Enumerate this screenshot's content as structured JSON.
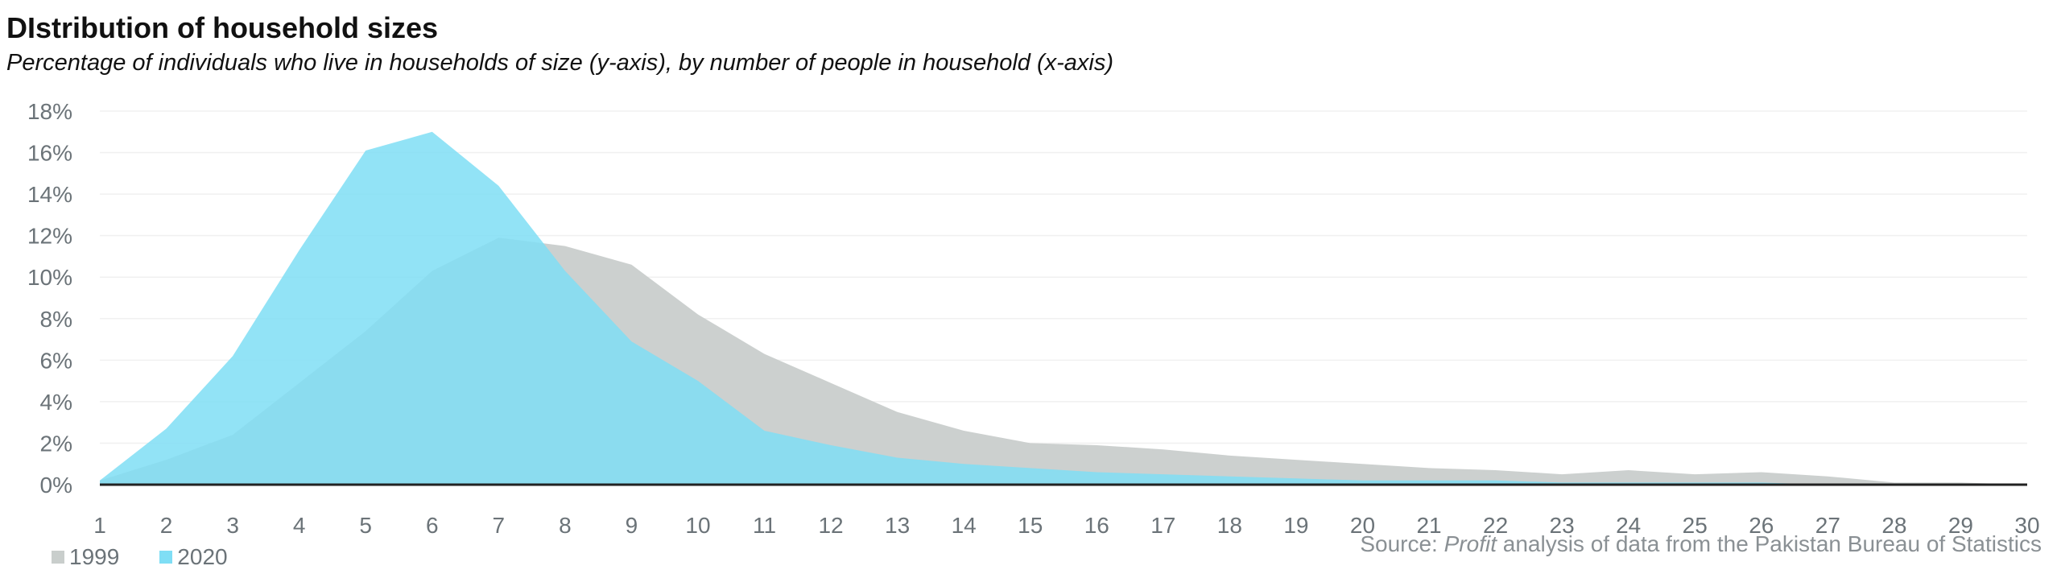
{
  "title": "DIstribution of household sizes",
  "subtitle": "Percentage of individuals who live in households of size (y-axis), by number of people in household (x-axis)",
  "source": {
    "prefix": "Source: ",
    "italic": "Profit",
    "suffix": " analysis of data from the Pakistan Bureau of Statistics"
  },
  "colors": {
    "series_1999": "#c9cecc",
    "series_2020": "#7fdef5",
    "axis": "#222222",
    "grid": "#f0f0f0"
  },
  "chart_data": {
    "type": "area",
    "title": "DIstribution of household sizes",
    "subtitle": "Percentage of individuals who live in households of size (y-axis), by number of people in household (x-axis)",
    "x": [
      1,
      2,
      3,
      4,
      5,
      6,
      7,
      8,
      9,
      10,
      11,
      12,
      13,
      14,
      15,
      16,
      17,
      18,
      19,
      20,
      21,
      22,
      23,
      24,
      25,
      26,
      27,
      28,
      29,
      30
    ],
    "x_ticks": [
      "1",
      "2",
      "3",
      "4",
      "5",
      "6",
      "7",
      "8",
      "9",
      "10",
      "11",
      "12",
      "13",
      "14",
      "15",
      "16",
      "17",
      "18",
      "19",
      "20",
      "21",
      "22",
      "23",
      "24",
      "25",
      "26",
      "27",
      "28",
      "29",
      "30"
    ],
    "y_ticks": [
      "0%",
      "2%",
      "4%",
      "6%",
      "8%",
      "10%",
      "12%",
      "14%",
      "16%",
      "18%"
    ],
    "ylim": [
      0,
      18
    ],
    "grid": true,
    "legend_position": "bottom-left",
    "series": [
      {
        "name": "1999",
        "color": "#c9cecc",
        "values": [
          0.2,
          1.2,
          2.4,
          4.9,
          7.4,
          10.3,
          11.9,
          11.5,
          10.6,
          8.2,
          6.3,
          4.9,
          3.5,
          2.6,
          2.0,
          1.9,
          1.7,
          1.4,
          1.2,
          1.0,
          0.8,
          0.7,
          0.5,
          0.7,
          0.5,
          0.6,
          0.4,
          0.1,
          0.1,
          0.0
        ]
      },
      {
        "name": "2020",
        "color": "#7fdef5",
        "values": [
          0.2,
          2.7,
          6.2,
          11.3,
          16.1,
          17.0,
          14.4,
          10.3,
          6.9,
          5.0,
          2.6,
          1.9,
          1.3,
          1.0,
          0.8,
          0.6,
          0.5,
          0.4,
          0.3,
          0.2,
          0.2,
          0.2,
          0.1,
          0.1,
          0.1,
          0.1,
          0.0,
          0.0,
          0.0,
          0.0
        ]
      }
    ]
  }
}
